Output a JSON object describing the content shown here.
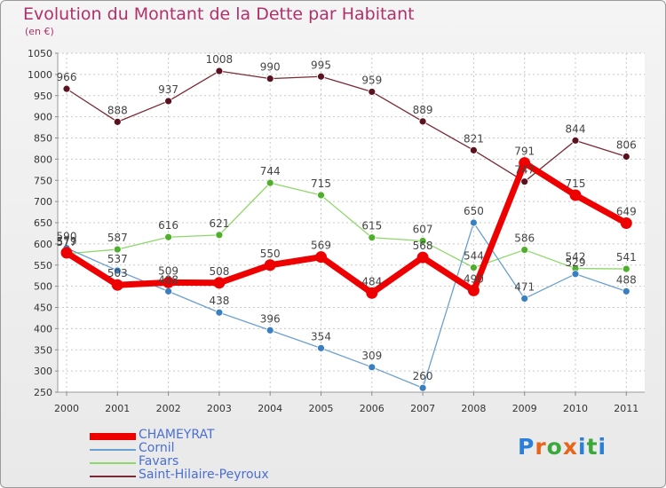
{
  "title": "Evolution du Montant de la Dette par Habitant",
  "subtitle": "(en €)",
  "logo": {
    "text": "Proxiti",
    "colors": [
      "#2b7fd9",
      "#e8641a",
      "#3aa83a",
      "#e8641a",
      "#2b7fd9",
      "#3aa83a",
      "#2b7fd9"
    ]
  },
  "colors": {
    "title": "#b0306a",
    "legend_text": "#4a6fd4",
    "axis": "#333333",
    "grid": "#c8c8c8"
  },
  "chart_data": {
    "type": "line",
    "title": "Evolution du Montant de la Dette par Habitant",
    "subtitle": "(en €)",
    "xlabel": "",
    "ylabel": "",
    "ylim": [
      250,
      1050
    ],
    "yticks": [
      250,
      300,
      350,
      400,
      450,
      500,
      550,
      600,
      650,
      700,
      750,
      800,
      850,
      900,
      950,
      1000,
      1050
    ],
    "categories": [
      "2000",
      "2001",
      "2002",
      "2003",
      "2004",
      "2005",
      "2006",
      "2007",
      "2008",
      "2009",
      "2010",
      "2011"
    ],
    "grid": true,
    "legend_position": "bottom",
    "series": [
      {
        "name": "Saint-Hilaire-Peyroux",
        "color": "#7a2a35",
        "dot": "#5a1220",
        "width": 1.3,
        "marker": 4,
        "values": [
          966,
          888,
          937,
          1008,
          990,
          995,
          959,
          889,
          821,
          747,
          844,
          806
        ],
        "labels": [
          "966",
          "888",
          "937",
          "1008",
          "990",
          "995",
          "959",
          "889",
          "821",
          "747",
          "844",
          "806"
        ]
      },
      {
        "name": "Favars",
        "color": "#8ed86a",
        "dot": "#4fae2a",
        "width": 1.3,
        "marker": 4,
        "values": [
          577,
          587,
          616,
          621,
          744,
          715,
          615,
          607,
          544,
          586,
          542,
          541
        ],
        "labels": [
          "577",
          "587",
          "616",
          "621",
          "744",
          "715",
          "615",
          "607",
          "544",
          "586",
          "542",
          "541"
        ]
      },
      {
        "name": "Cornil",
        "color": "#6aa0cf",
        "dot": "#3a7fc0",
        "width": 1.3,
        "marker": 4,
        "values": [
          590,
          537,
          488,
          438,
          396,
          354,
          309,
          260,
          650,
          471,
          529,
          488
        ],
        "labels": [
          "590",
          "537",
          "488",
          "438",
          "396",
          "354",
          "309",
          "260",
          "650",
          "471",
          "529",
          "488"
        ]
      },
      {
        "name": "CHAMEYRAT",
        "color": "#ee0000",
        "dot": "#ee0000",
        "width": 7,
        "marker": 6.5,
        "values": [
          579,
          503,
          509,
          508,
          550,
          569,
          484,
          568,
          490,
          791,
          715,
          649
        ],
        "labels": [
          "579",
          "503",
          "509",
          "508",
          "550",
          "569",
          "484",
          "568",
          "490",
          "791",
          "715",
          "649"
        ]
      }
    ]
  }
}
